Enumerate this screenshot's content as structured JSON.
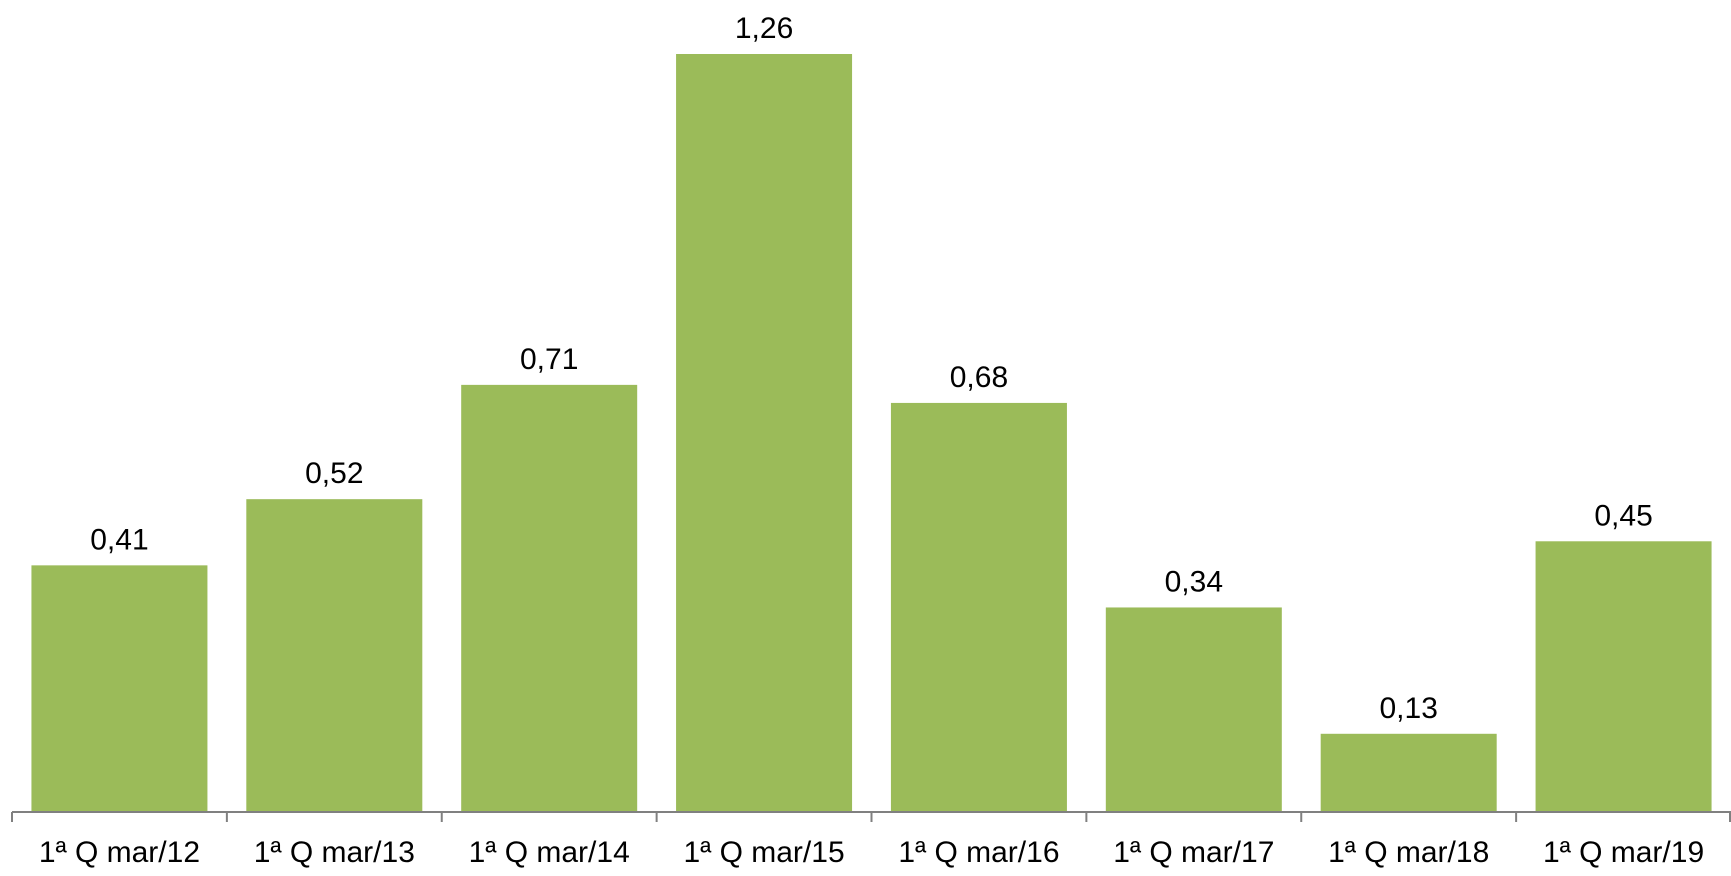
{
  "chart_data": {
    "type": "bar",
    "categories": [
      "1ª Q mar/12",
      "1ª Q mar/13",
      "1ª Q mar/14",
      "1ª Q mar/15",
      "1ª Q mar/16",
      "1ª Q mar/17",
      "1ª Q mar/18",
      "1ª Q mar/19"
    ],
    "values": [
      0.41,
      0.52,
      0.71,
      1.26,
      0.68,
      0.34,
      0.13,
      0.45
    ],
    "value_labels": [
      "0,41",
      "0,52",
      "0,71",
      "1,26",
      "0,68",
      "0,34",
      "0,13",
      "0,45"
    ],
    "ylim": [
      0,
      1.26
    ],
    "grid": false,
    "legend": "none",
    "colors": {
      "bar": "#9BBB59",
      "axis": "#808080",
      "text": "#000000"
    }
  }
}
